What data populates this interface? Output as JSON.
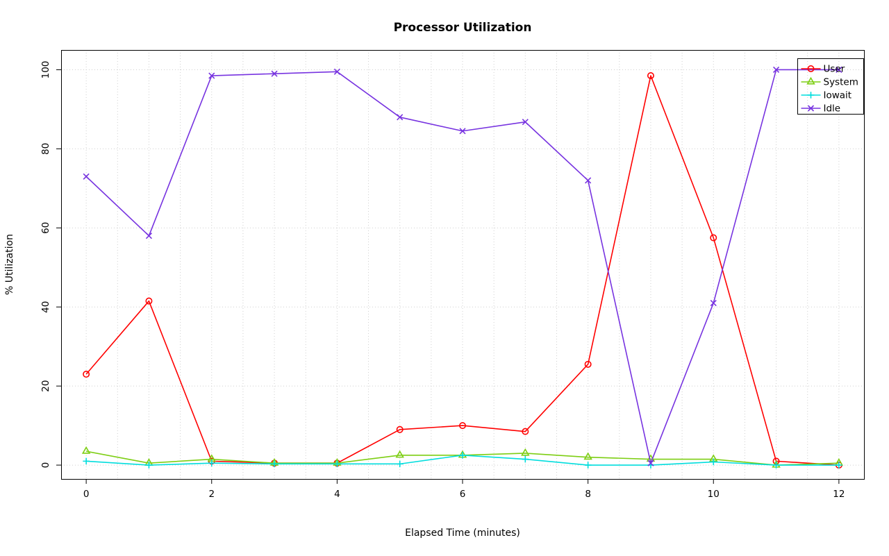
{
  "chart_data": {
    "type": "line",
    "title": "Processor Utilization",
    "xlabel": "Elapsed Time (minutes)",
    "ylabel": "% Utilization",
    "x": [
      0,
      1,
      2,
      3,
      4,
      5,
      6,
      7,
      8,
      9,
      10,
      11,
      12
    ],
    "xticks": [
      0,
      2,
      4,
      6,
      8,
      10,
      12
    ],
    "yticks": [
      0,
      20,
      40,
      60,
      80,
      100
    ],
    "xlim": [
      -0.4,
      12.4
    ],
    "ylim": [
      -3.5,
      105
    ],
    "grid": true,
    "grid_style": "dotted",
    "grid_color": "#cfcfcf",
    "legend_position": "top-right",
    "series": [
      {
        "name": "User",
        "color": "#ff0000",
        "marker": "circle",
        "values": [
          23,
          41.5,
          1,
          0.5,
          0.5,
          9,
          10,
          8.5,
          25.5,
          98.5,
          57.5,
          1,
          0
        ]
      },
      {
        "name": "System",
        "color": "#7dce13",
        "marker": "triangle",
        "values": [
          3.5,
          0.5,
          1.5,
          0.5,
          0.5,
          2.5,
          2.5,
          3,
          2,
          1.5,
          1.5,
          0,
          0.5
        ]
      },
      {
        "name": "Iowait",
        "color": "#00dddd",
        "marker": "plus",
        "values": [
          1,
          0,
          0.5,
          0.3,
          0.3,
          0.3,
          2.5,
          1.5,
          0,
          0,
          0.8,
          0,
          0
        ]
      },
      {
        "name": "Idle",
        "color": "#7733e0",
        "marker": "x",
        "values": [
          73,
          58,
          98.5,
          99,
          99.5,
          88,
          84.5,
          86.8,
          72,
          0.5,
          41,
          100,
          100
        ]
      }
    ]
  }
}
